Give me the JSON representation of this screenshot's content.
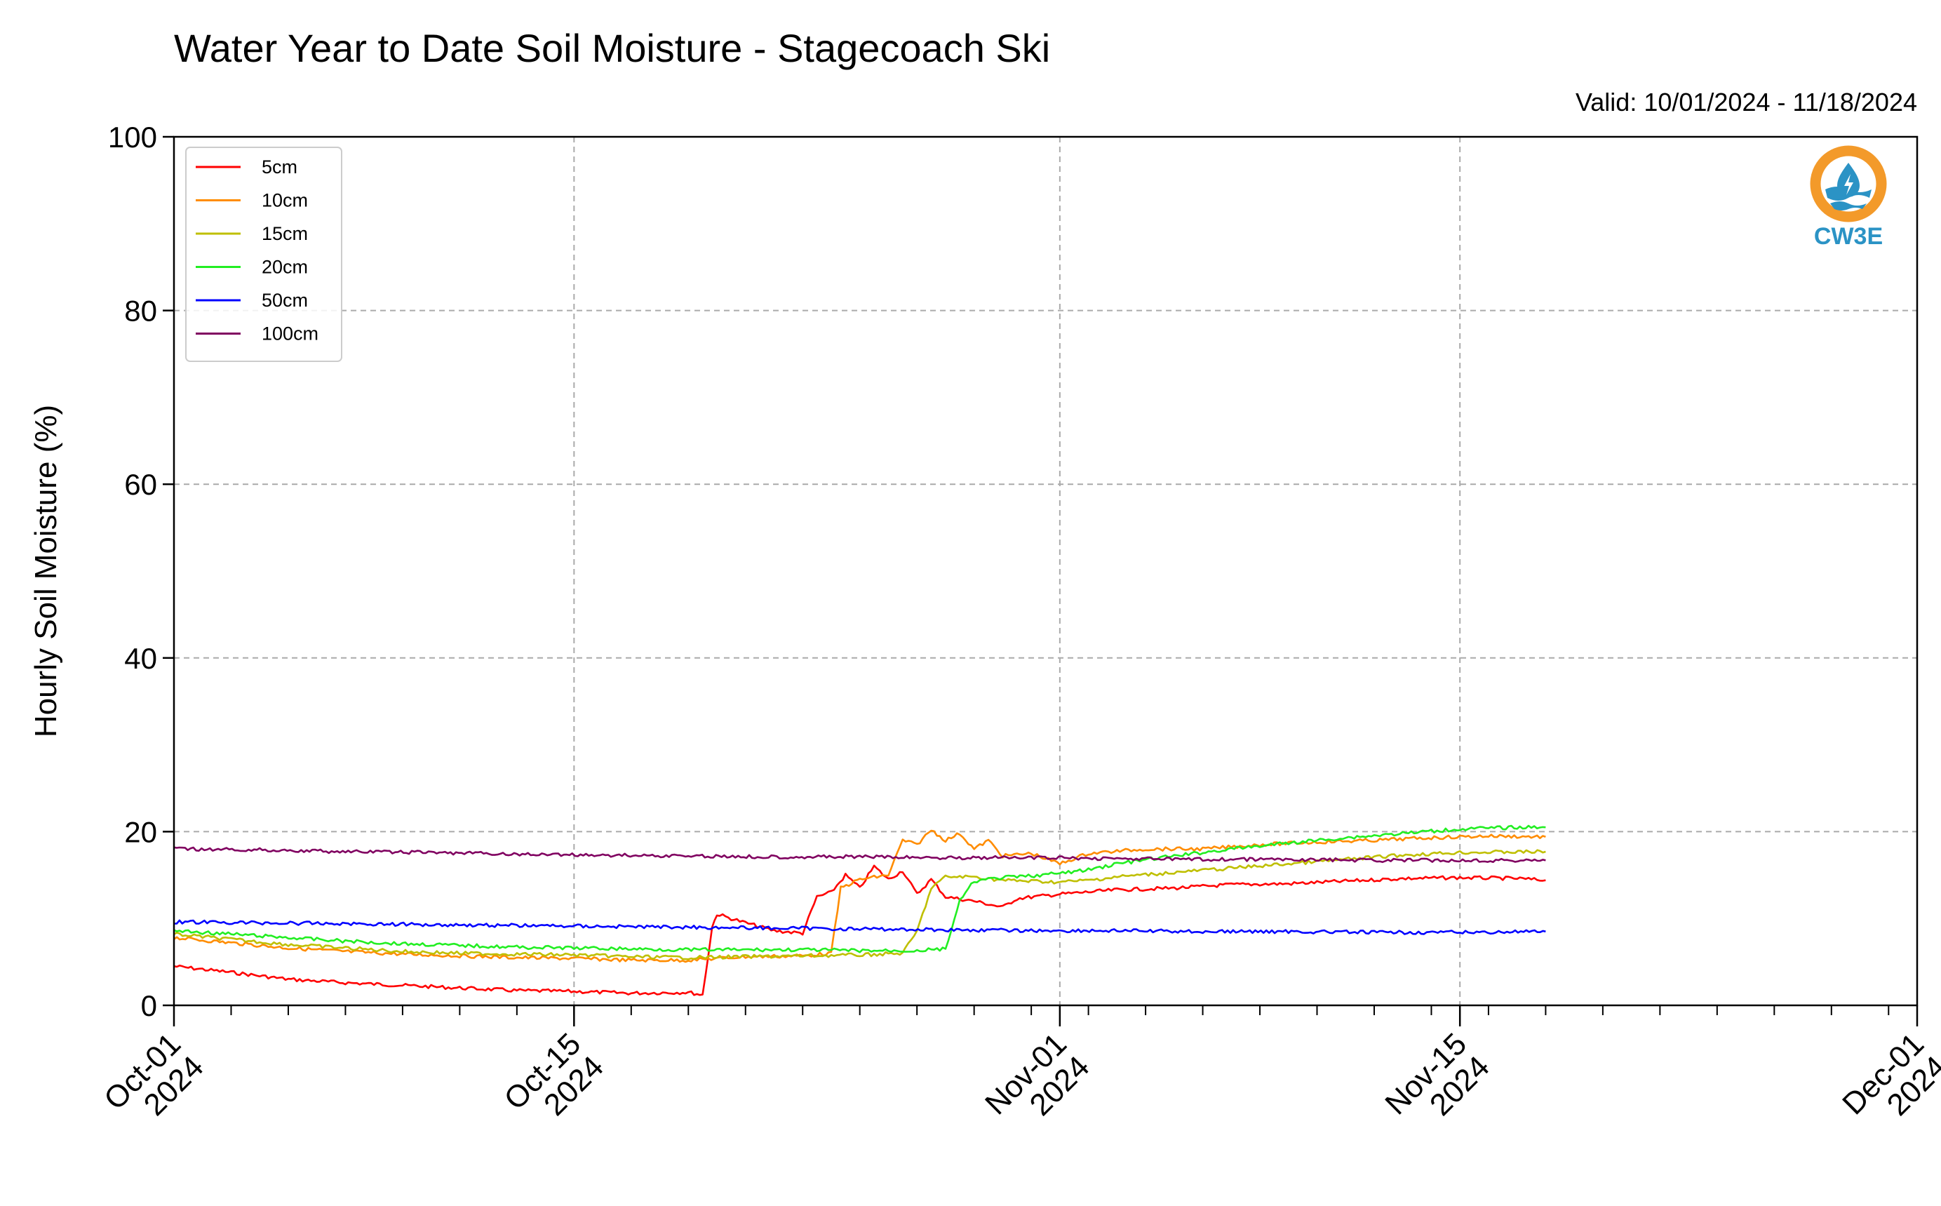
{
  "title": "Water Year to Date Soil Moisture - Stagecoach Ski",
  "valid_label": "Valid: 10/01/2024 - 11/18/2024",
  "logo": {
    "text": "CW3E",
    "icon": "cw3e-logo-icon",
    "ring_color": "#f39a2a",
    "wave_color": "#2b93c5"
  },
  "chart_data": {
    "type": "line",
    "title": "Water Year to Date Soil Moisture - Stagecoach Ski",
    "xlabel": "",
    "ylabel": "Hourly Soil Moisture (%)",
    "xlim": [
      "2024-10-01",
      "2024-12-01"
    ],
    "ylim": [
      0,
      100
    ],
    "yticks": [
      0,
      20,
      40,
      60,
      80,
      100
    ],
    "xticks": [
      {
        "date": "2024-10-01",
        "label1": "Oct-01",
        "label2": "2024"
      },
      {
        "date": "2024-10-15",
        "label1": "Oct-15",
        "label2": "2024"
      },
      {
        "date": "2024-11-01",
        "label1": "Nov-01",
        "label2": "2024"
      },
      {
        "date": "2024-11-15",
        "label1": "Nov-15",
        "label2": "2024"
      },
      {
        "date": "2024-12-01",
        "label1": "Dec-01",
        "label2": "2024"
      }
    ],
    "grid": true,
    "legend": "upper-left",
    "series": [
      {
        "name": "5cm",
        "color": "#ff0000",
        "points": [
          [
            "2024-10-01",
            4.5
          ],
          [
            "2024-10-03",
            3.8
          ],
          [
            "2024-10-05",
            3.0
          ],
          [
            "2024-10-07",
            2.6
          ],
          [
            "2024-10-09",
            2.3
          ],
          [
            "2024-10-11",
            2.0
          ],
          [
            "2024-10-13",
            1.7
          ],
          [
            "2024-10-15",
            1.6
          ],
          [
            "2024-10-17",
            1.4
          ],
          [
            "2024-10-19",
            1.5
          ],
          [
            "2024-10-19T12",
            1.2
          ],
          [
            "2024-10-19T20",
            9.0
          ],
          [
            "2024-10-20",
            10.5
          ],
          [
            "2024-10-21",
            9.5
          ],
          [
            "2024-10-22",
            8.6
          ],
          [
            "2024-10-23",
            8.3
          ],
          [
            "2024-10-23T12",
            12.5
          ],
          [
            "2024-10-24",
            13.0
          ],
          [
            "2024-10-24T12",
            15.0
          ],
          [
            "2024-10-25",
            13.5
          ],
          [
            "2024-10-25T12",
            16.0
          ],
          [
            "2024-10-26",
            14.5
          ],
          [
            "2024-10-26T12",
            15.5
          ],
          [
            "2024-10-27",
            12.8
          ],
          [
            "2024-10-27T12",
            14.5
          ],
          [
            "2024-10-28",
            12.5
          ],
          [
            "2024-10-29",
            12.0
          ],
          [
            "2024-10-30",
            11.3
          ],
          [
            "2024-10-30T12",
            12.3
          ],
          [
            "2024-11-01",
            12.8
          ],
          [
            "2024-11-03",
            13.3
          ],
          [
            "2024-11-05",
            13.5
          ],
          [
            "2024-11-07",
            13.9
          ],
          [
            "2024-11-09",
            14.0
          ],
          [
            "2024-11-11",
            14.3
          ],
          [
            "2024-11-13",
            14.6
          ],
          [
            "2024-11-15",
            14.7
          ],
          [
            "2024-11-17",
            14.6
          ],
          [
            "2024-11-18",
            14.4
          ]
        ]
      },
      {
        "name": "10cm",
        "color": "#ff8c00",
        "points": [
          [
            "2024-10-01",
            7.8
          ],
          [
            "2024-10-03",
            7.2
          ],
          [
            "2024-10-05",
            6.6
          ],
          [
            "2024-10-07",
            6.2
          ],
          [
            "2024-10-09",
            5.9
          ],
          [
            "2024-10-11",
            5.7
          ],
          [
            "2024-10-13",
            5.5
          ],
          [
            "2024-10-15",
            5.4
          ],
          [
            "2024-10-17",
            5.2
          ],
          [
            "2024-10-19",
            5.2
          ],
          [
            "2024-10-21",
            5.6
          ],
          [
            "2024-10-23",
            5.7
          ],
          [
            "2024-10-24",
            6.0
          ],
          [
            "2024-10-24T08",
            13.5
          ],
          [
            "2024-10-25",
            14.5
          ],
          [
            "2024-10-26",
            15.0
          ],
          [
            "2024-10-26T12",
            19.0
          ],
          [
            "2024-10-27",
            18.5
          ],
          [
            "2024-10-27T12",
            20.2
          ],
          [
            "2024-10-28",
            19.0
          ],
          [
            "2024-10-28T12",
            19.8
          ],
          [
            "2024-10-29",
            18.0
          ],
          [
            "2024-10-29T12",
            19.0
          ],
          [
            "2024-10-30",
            17.2
          ],
          [
            "2024-10-31",
            17.5
          ],
          [
            "2024-11-01",
            16.3
          ],
          [
            "2024-11-02",
            17.5
          ],
          [
            "2024-11-04",
            18.0
          ],
          [
            "2024-11-06",
            18.0
          ],
          [
            "2024-11-08",
            18.5
          ],
          [
            "2024-11-10",
            18.8
          ],
          [
            "2024-11-12",
            19.0
          ],
          [
            "2024-11-14",
            19.3
          ],
          [
            "2024-11-16",
            19.5
          ],
          [
            "2024-11-18",
            19.4
          ]
        ]
      },
      {
        "name": "15cm",
        "color": "#bfbf00",
        "points": [
          [
            "2024-10-01",
            8.2
          ],
          [
            "2024-10-03",
            7.6
          ],
          [
            "2024-10-05",
            7.0
          ],
          [
            "2024-10-07",
            6.6
          ],
          [
            "2024-10-09",
            6.2
          ],
          [
            "2024-10-11",
            6.0
          ],
          [
            "2024-10-13",
            5.9
          ],
          [
            "2024-10-15",
            5.8
          ],
          [
            "2024-10-17",
            5.6
          ],
          [
            "2024-10-19",
            5.5
          ],
          [
            "2024-10-21",
            5.6
          ],
          [
            "2024-10-23",
            5.7
          ],
          [
            "2024-10-25",
            5.8
          ],
          [
            "2024-10-26T12",
            6.0
          ],
          [
            "2024-10-27",
            8.5
          ],
          [
            "2024-10-27T12",
            13.5
          ],
          [
            "2024-10-28",
            14.8
          ],
          [
            "2024-10-29",
            14.8
          ],
          [
            "2024-10-30",
            14.4
          ],
          [
            "2024-10-31",
            14.3
          ],
          [
            "2024-11-01",
            14.2
          ],
          [
            "2024-11-02",
            14.4
          ],
          [
            "2024-11-03",
            14.8
          ],
          [
            "2024-11-05",
            15.3
          ],
          [
            "2024-11-07",
            15.8
          ],
          [
            "2024-11-09",
            16.3
          ],
          [
            "2024-11-11",
            16.8
          ],
          [
            "2024-11-13",
            17.3
          ],
          [
            "2024-11-15",
            17.6
          ],
          [
            "2024-11-18",
            17.7
          ]
        ]
      },
      {
        "name": "20cm",
        "color": "#22ee22",
        "points": [
          [
            "2024-10-01",
            8.6
          ],
          [
            "2024-10-03",
            8.2
          ],
          [
            "2024-10-05",
            7.8
          ],
          [
            "2024-10-07",
            7.4
          ],
          [
            "2024-10-09",
            7.1
          ],
          [
            "2024-10-11",
            6.9
          ],
          [
            "2024-10-13",
            6.7
          ],
          [
            "2024-10-15",
            6.6
          ],
          [
            "2024-10-17",
            6.5
          ],
          [
            "2024-10-19",
            6.4
          ],
          [
            "2024-10-21",
            6.4
          ],
          [
            "2024-10-23",
            6.4
          ],
          [
            "2024-10-25",
            6.3
          ],
          [
            "2024-10-27",
            6.3
          ],
          [
            "2024-10-28",
            6.5
          ],
          [
            "2024-10-28T12",
            12.0
          ],
          [
            "2024-10-29",
            14.3
          ],
          [
            "2024-10-30",
            14.7
          ],
          [
            "2024-10-31",
            14.9
          ],
          [
            "2024-11-01",
            15.2
          ],
          [
            "2024-11-02",
            15.6
          ],
          [
            "2024-11-03",
            16.3
          ],
          [
            "2024-11-05",
            17.2
          ],
          [
            "2024-11-07",
            18.0
          ],
          [
            "2024-11-09",
            18.7
          ],
          [
            "2024-11-11",
            19.3
          ],
          [
            "2024-11-13",
            19.8
          ],
          [
            "2024-11-15",
            20.3
          ],
          [
            "2024-11-17",
            20.5
          ],
          [
            "2024-11-18",
            20.5
          ]
        ]
      },
      {
        "name": "50cm",
        "color": "#0000ff",
        "points": [
          [
            "2024-10-01",
            9.6
          ],
          [
            "2024-10-04",
            9.5
          ],
          [
            "2024-10-07",
            9.4
          ],
          [
            "2024-10-10",
            9.3
          ],
          [
            "2024-10-13",
            9.2
          ],
          [
            "2024-10-16",
            9.1
          ],
          [
            "2024-10-19",
            9.0
          ],
          [
            "2024-10-22",
            8.9
          ],
          [
            "2024-10-25",
            8.8
          ],
          [
            "2024-10-28",
            8.7
          ],
          [
            "2024-10-31",
            8.6
          ],
          [
            "2024-11-03",
            8.6
          ],
          [
            "2024-11-06",
            8.5
          ],
          [
            "2024-11-09",
            8.5
          ],
          [
            "2024-11-12",
            8.4
          ],
          [
            "2024-11-15",
            8.4
          ],
          [
            "2024-11-18",
            8.5
          ]
        ]
      },
      {
        "name": "100cm",
        "color": "#800060",
        "points": [
          [
            "2024-10-01",
            18.0
          ],
          [
            "2024-10-04",
            17.9
          ],
          [
            "2024-10-07",
            17.7
          ],
          [
            "2024-10-10",
            17.6
          ],
          [
            "2024-10-13",
            17.4
          ],
          [
            "2024-10-16",
            17.3
          ],
          [
            "2024-10-19",
            17.2
          ],
          [
            "2024-10-22",
            17.1
          ],
          [
            "2024-10-25",
            17.1
          ],
          [
            "2024-10-28",
            17.0
          ],
          [
            "2024-10-31",
            17.0
          ],
          [
            "2024-11-03",
            16.9
          ],
          [
            "2024-11-06",
            16.8
          ],
          [
            "2024-11-09",
            16.8
          ],
          [
            "2024-11-12",
            16.7
          ],
          [
            "2024-11-15",
            16.7
          ],
          [
            "2024-11-18",
            16.7
          ]
        ]
      }
    ]
  }
}
